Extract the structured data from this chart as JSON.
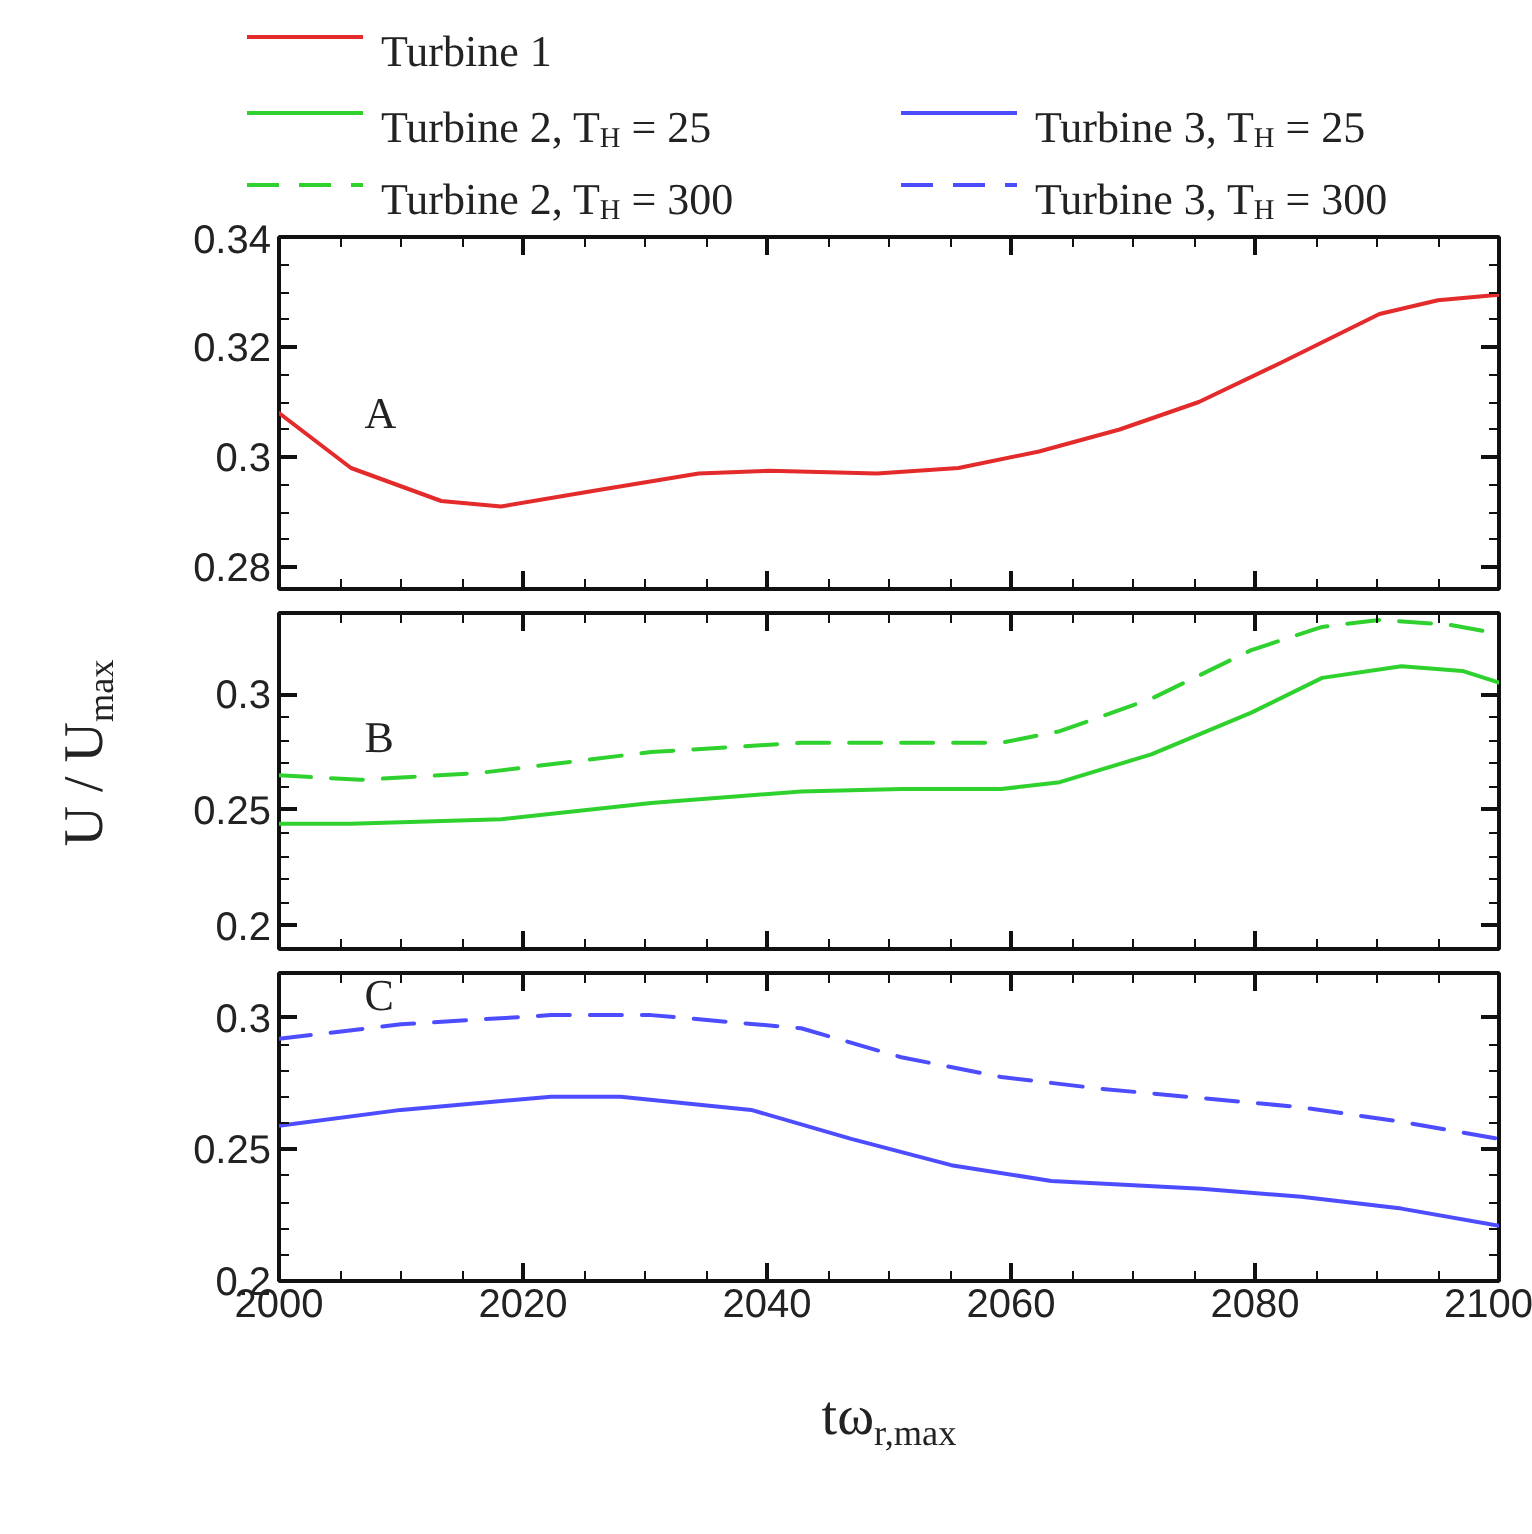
{
  "chart_data": [
    {
      "type": "line",
      "legend": "top",
      "tick_labels": "y",
      "grid": false,
      "xlim": [
        2000,
        2100
      ],
      "xticks": [
        2000,
        2020,
        2040,
        2060,
        2080,
        2100
      ],
      "ylim": [
        0.276,
        0.34
      ],
      "yticks": [
        0.28,
        0.3,
        0.32,
        0.34
      ],
      "annotations": [
        "A"
      ],
      "series": [
        {
          "name": "Turbine 1",
          "color": "#e32b2b",
          "line_style": "solid",
          "x": [
            2000,
            2005.9,
            2013.3,
            2018.2,
            2026.2,
            2034.4,
            2040.2,
            2049,
            2055.7,
            2062.3,
            2068.9,
            2075.4,
            2082,
            2090.2,
            2095,
            2100
          ],
          "values": [
            0.308,
            0.298,
            0.292,
            0.291,
            0.294,
            0.297,
            0.2975,
            0.297,
            0.298,
            0.301,
            0.305,
            0.31,
            0.317,
            0.326,
            0.3285,
            0.3295
          ]
        }
      ]
    },
    {
      "type": "line",
      "legend": "top",
      "tick_labels": "y",
      "grid": false,
      "xlim": [
        2000,
        2100
      ],
      "xticks": [
        2000,
        2020,
        2040,
        2060,
        2080,
        2100
      ],
      "ylim": [
        0.19,
        0.335
      ],
      "yticks": [
        0.2,
        0.25,
        0.3
      ],
      "ylabel": "U / U$_{max}$",
      "annotations": [
        "B"
      ],
      "series": [
        {
          "name": "Turbine 2, T$_{H}$ = 25",
          "color": "#2fd12f",
          "line_style": "solid",
          "x": [
            2000,
            2005.9,
            2018.2,
            2030.5,
            2042.8,
            2051,
            2059.2,
            2064,
            2071.5,
            2079.7,
            2085.5,
            2092,
            2097,
            2100
          ],
          "values": [
            0.244,
            0.244,
            0.246,
            0.253,
            0.258,
            0.259,
            0.259,
            0.262,
            0.274,
            0.292,
            0.307,
            0.312,
            0.31,
            0.305
          ]
        },
        {
          "name": "Turbine 2, T$_{H}$ = 300",
          "color": "#2fd12f",
          "line_style": "dashed",
          "x": [
            2000,
            2006.7,
            2016.5,
            2030.5,
            2042.8,
            2059.2,
            2064,
            2071.5,
            2079.7,
            2085.5,
            2090.2,
            2095.9,
            2100
          ],
          "values": [
            0.265,
            0.263,
            0.266,
            0.275,
            0.279,
            0.279,
            0.284,
            0.298,
            0.319,
            0.329,
            0.332,
            0.33,
            0.326
          ]
        }
      ]
    },
    {
      "type": "line",
      "legend": "top",
      "grid": false,
      "xlim": [
        2000,
        2100
      ],
      "xticks": [
        2000,
        2020,
        2040,
        2060,
        2080,
        2100
      ],
      "ylim": [
        0.2,
        0.317
      ],
      "yticks": [
        0.2,
        0.25,
        0.3
      ],
      "xlabel": "tω$_{r,max}$",
      "annotations": [
        "C"
      ],
      "series": [
        {
          "name": "Turbine 3, T$_{H}$ = 25",
          "color": "#4d4dff",
          "line_style": "solid",
          "x": [
            2000,
            2010,
            2022.3,
            2028,
            2038.7,
            2046.9,
            2055.1,
            2063.3,
            2075.6,
            2083.8,
            2092,
            2100
          ],
          "values": [
            0.259,
            0.265,
            0.27,
            0.27,
            0.265,
            0.254,
            0.244,
            0.238,
            0.235,
            0.232,
            0.2275,
            0.221
          ]
        },
        {
          "name": "Turbine 3, T$_{H}$ = 300",
          "color": "#4d4dff",
          "line_style": "dashed",
          "x": [
            2000,
            2010,
            2022.3,
            2030.5,
            2042.8,
            2051,
            2059.2,
            2067.4,
            2075.6,
            2083.8,
            2092,
            2100
          ],
          "values": [
            0.292,
            0.2975,
            0.301,
            0.301,
            0.296,
            0.285,
            0.2775,
            0.273,
            0.2695,
            0.266,
            0.2605,
            0.254
          ]
        }
      ]
    }
  ]
}
